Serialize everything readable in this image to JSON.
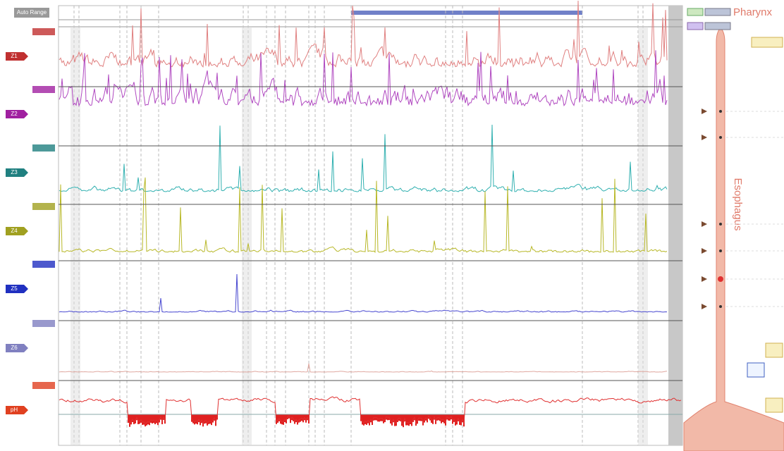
{
  "toolbar": {
    "auto_range": "Auto Range"
  },
  "channels": [
    {
      "label": "Z1"
    },
    {
      "label": "Z2"
    },
    {
      "label": "Z3"
    },
    {
      "label": "Z4"
    },
    {
      "label": "Z5"
    },
    {
      "label": "Z6"
    },
    {
      "label": "pH"
    }
  ],
  "anatomy": {
    "pharynx": "Pharynx",
    "esophagus": "Esophagus"
  }
}
